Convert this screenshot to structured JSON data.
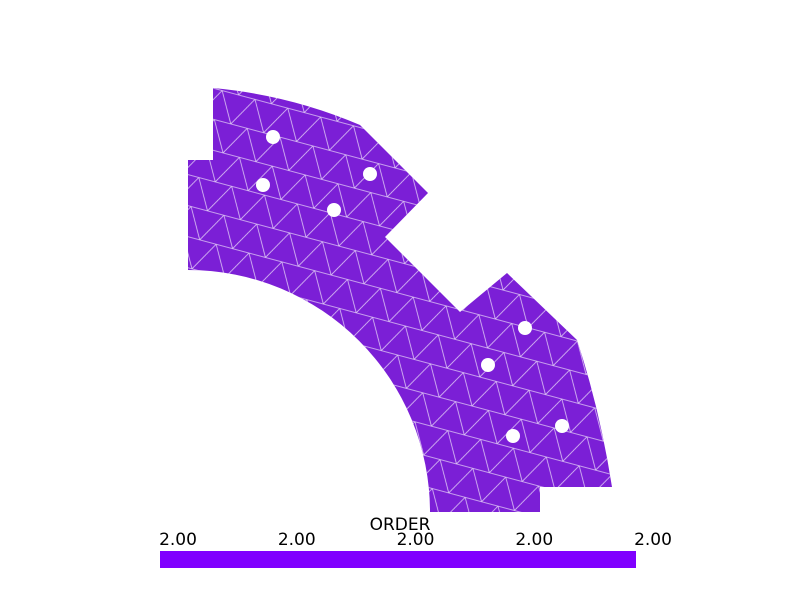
{
  "scalar_bar": {
    "title": "ORDER",
    "labels": [
      "2.00",
      "2.00",
      "2.00",
      "2.00",
      "2.00"
    ],
    "color": "#8000ff"
  }
}
